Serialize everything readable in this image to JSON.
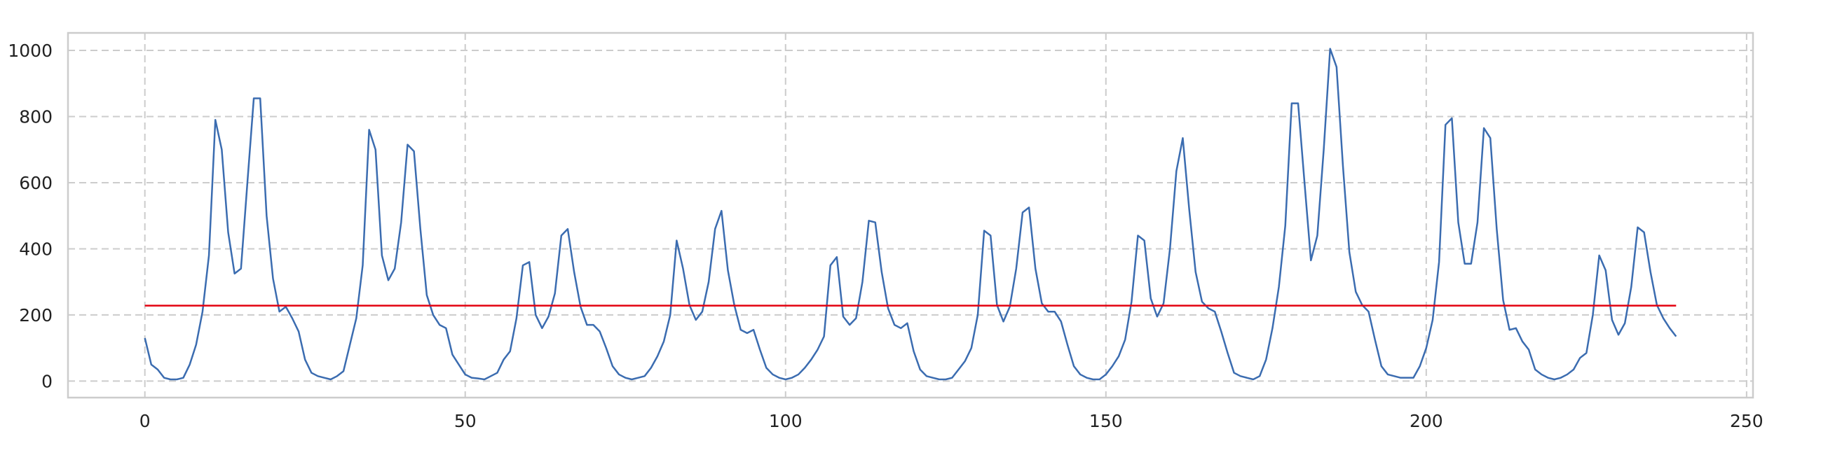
{
  "chart_data": {
    "type": "line",
    "x": [
      0,
      1,
      2,
      3,
      4,
      5,
      6,
      7,
      8,
      9,
      10,
      11,
      12,
      13,
      14,
      15,
      16,
      17,
      18,
      19,
      20,
      21,
      22,
      23,
      24,
      25,
      26,
      27,
      28,
      29,
      30,
      31,
      32,
      33,
      34,
      35,
      36,
      37,
      38,
      39,
      40,
      41,
      42,
      43,
      44,
      45,
      46,
      47,
      48,
      49,
      50,
      51,
      52,
      53,
      54,
      55,
      56,
      57,
      58,
      59,
      60,
      61,
      62,
      63,
      64,
      65,
      66,
      67,
      68,
      69,
      70,
      71,
      72,
      73,
      74,
      75,
      76,
      77,
      78,
      79,
      80,
      81,
      82,
      83,
      84,
      85,
      86,
      87,
      88,
      89,
      90,
      91,
      92,
      93,
      94,
      95,
      96,
      97,
      98,
      99,
      100,
      101,
      102,
      103,
      104,
      105,
      106,
      107,
      108,
      109,
      110,
      111,
      112,
      113,
      114,
      115,
      116,
      117,
      118,
      119,
      120,
      121,
      122,
      123,
      124,
      125,
      126,
      127,
      128,
      129,
      130,
      131,
      132,
      133,
      134,
      135,
      136,
      137,
      138,
      139,
      140,
      141,
      142,
      143,
      144,
      145,
      146,
      147,
      148,
      149,
      150,
      151,
      152,
      153,
      154,
      155,
      156,
      157,
      158,
      159,
      160,
      161,
      162,
      163,
      164,
      165,
      166,
      167,
      168,
      169,
      170,
      171,
      172,
      173,
      174,
      175,
      176,
      177,
      178,
      179,
      180,
      181,
      182,
      183,
      184,
      185,
      186,
      187,
      188,
      189,
      190,
      191,
      192,
      193,
      194,
      195,
      196,
      197,
      198,
      199,
      200,
      201,
      202,
      203,
      204,
      205,
      206,
      207,
      208,
      209,
      210,
      211,
      212,
      213,
      214,
      215,
      216,
      217,
      218,
      219,
      220,
      221,
      222,
      223,
      224,
      225,
      226,
      227,
      228,
      229,
      230,
      231,
      232,
      233,
      234,
      235,
      236,
      237,
      238,
      239
    ],
    "series": [
      {
        "color": "#3b6cb0",
        "values": [
          130,
          50,
          35,
          10,
          5,
          5,
          10,
          50,
          110,
          210,
          380,
          790,
          700,
          450,
          325,
          340,
          600,
          855,
          855,
          500,
          310,
          210,
          225,
          190,
          150,
          65,
          25,
          15,
          10,
          5,
          15,
          30,
          110,
          190,
          350,
          760,
          700,
          380,
          305,
          340,
          480,
          715,
          695,
          460,
          260,
          200,
          170,
          160,
          80,
          50,
          20,
          10,
          8,
          5,
          15,
          25,
          65,
          90,
          190,
          350,
          360,
          200,
          160,
          195,
          265,
          440,
          460,
          330,
          225,
          170,
          170,
          150,
          100,
          45,
          20,
          10,
          5,
          10,
          15,
          40,
          75,
          120,
          200,
          425,
          340,
          230,
          185,
          210,
          300,
          460,
          515,
          335,
          230,
          155,
          145,
          155,
          95,
          40,
          20,
          10,
          5,
          10,
          20,
          40,
          65,
          95,
          135,
          350,
          375,
          195,
          170,
          190,
          300,
          485,
          480,
          330,
          220,
          170,
          160,
          175,
          90,
          35,
          15,
          10,
          5,
          5,
          10,
          35,
          60,
          100,
          200,
          455,
          440,
          230,
          180,
          225,
          340,
          510,
          525,
          340,
          235,
          210,
          210,
          180,
          110,
          45,
          20,
          10,
          5,
          5,
          20,
          45,
          75,
          125,
          240,
          440,
          425,
          250,
          195,
          235,
          400,
          635,
          735,
          520,
          330,
          240,
          220,
          210,
          150,
          85,
          25,
          15,
          10,
          5,
          15,
          65,
          160,
          285,
          470,
          840,
          840,
          600,
          365,
          440,
          700,
          1005,
          950,
          650,
          390,
          270,
          230,
          210,
          125,
          45,
          20,
          15,
          10,
          10,
          10,
          45,
          100,
          185,
          360,
          775,
          795,
          480,
          355,
          355,
          480,
          765,
          735,
          460,
          245,
          155,
          160,
          120,
          95,
          35,
          20,
          10,
          5,
          10,
          20,
          35,
          70,
          85,
          200,
          380,
          335,
          185,
          140,
          175,
          285,
          465,
          450,
          330,
          230,
          190,
          160,
          135
        ]
      }
    ],
    "reference_line": {
      "value": 228,
      "color": "#e3000f",
      "x": [
        0,
        239
      ]
    },
    "xlim": [
      -12,
      251
    ],
    "ylim": [
      -50,
      1053
    ],
    "xticks": [
      0,
      50,
      100,
      150,
      200,
      250
    ],
    "yticks": [
      0,
      200,
      400,
      600,
      800,
      1000
    ],
    "grid": true
  }
}
